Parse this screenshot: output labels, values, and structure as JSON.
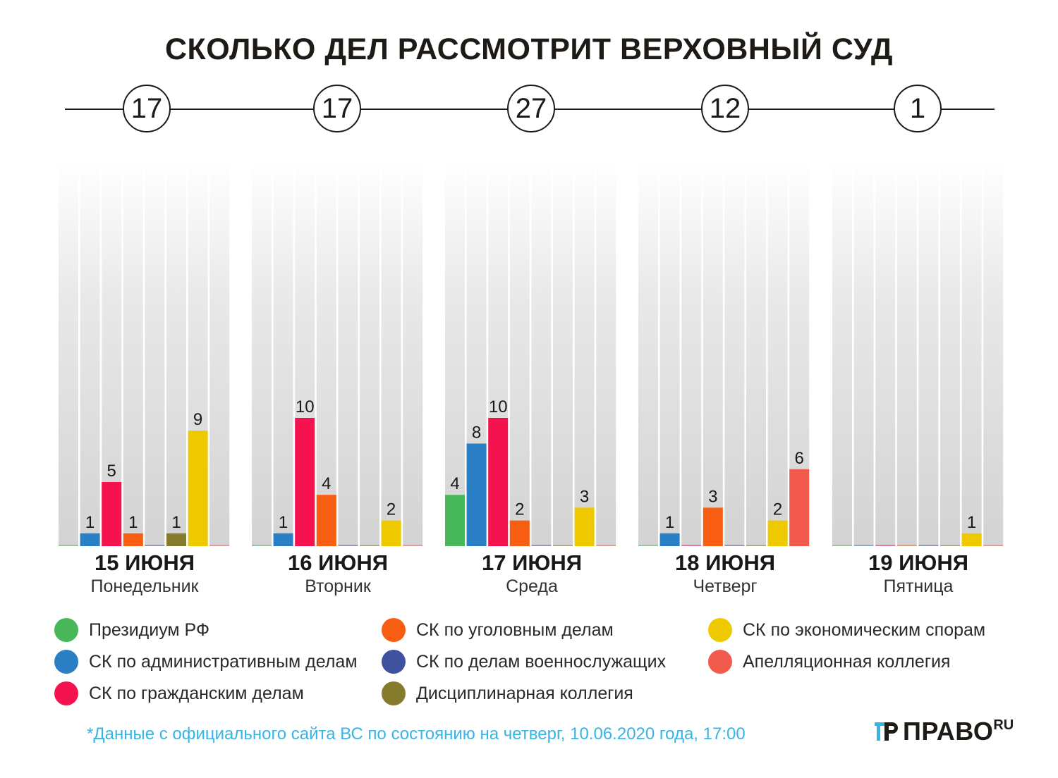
{
  "title": "СКОЛЬКО ДЕЛ РАССМОТРИТ ВЕРХОВНЫЙ СУД",
  "chart_data": {
    "type": "bar",
    "title": "СКОЛЬКО ДЕЛ РАССМОТРИТ ВЕРХОВНЫЙ СУД",
    "series": [
      {
        "name": "Президиум РФ",
        "color": "#46b85a"
      },
      {
        "name": "СК по административным делам",
        "color": "#2b7fc4"
      },
      {
        "name": "СК по гражданским делам",
        "color": "#f5134f"
      },
      {
        "name": "СК по уголовным делам",
        "color": "#f75e12"
      },
      {
        "name": "СК по делам военнослужащих",
        "color": "#3f52a0"
      },
      {
        "name": "Дисциплинарная коллегия",
        "color": "#857b2c"
      },
      {
        "name": "СК по экономическим спорам",
        "color": "#eec900"
      },
      {
        "name": "Апелляционная коллегия",
        "color": "#f15a4d"
      }
    ],
    "days": [
      {
        "date": "15 ИЮНЯ",
        "weekday": "Понедельник",
        "total": "17",
        "values": [
          0,
          1,
          5,
          1,
          0,
          1,
          9,
          0
        ]
      },
      {
        "date": "16 ИЮНЯ",
        "weekday": "Вторник",
        "total": "17",
        "values": [
          0,
          1,
          10,
          4,
          0,
          0,
          2,
          0
        ]
      },
      {
        "date": "17 ИЮНЯ",
        "weekday": "Среда",
        "total": "27",
        "values": [
          4,
          8,
          10,
          2,
          0,
          0,
          3,
          0
        ]
      },
      {
        "date": "18 ИЮНЯ",
        "weekday": "Четверг",
        "total": "12",
        "values": [
          0,
          1,
          0,
          3,
          0,
          0,
          2,
          6
        ]
      },
      {
        "date": "19 ИЮНЯ",
        "weekday": "Пятница",
        "total": "1",
        "values": [
          0,
          0,
          0,
          0,
          0,
          0,
          1,
          0
        ]
      }
    ],
    "ylim": [
      0,
      30
    ],
    "legend_position": "bottom"
  },
  "footnote": "*Данные с официального сайта ВС по состоянию на четверг, 10.06.2020 года, 17:00",
  "logo": {
    "text": "ПРАВО",
    "suffix": "RU"
  }
}
